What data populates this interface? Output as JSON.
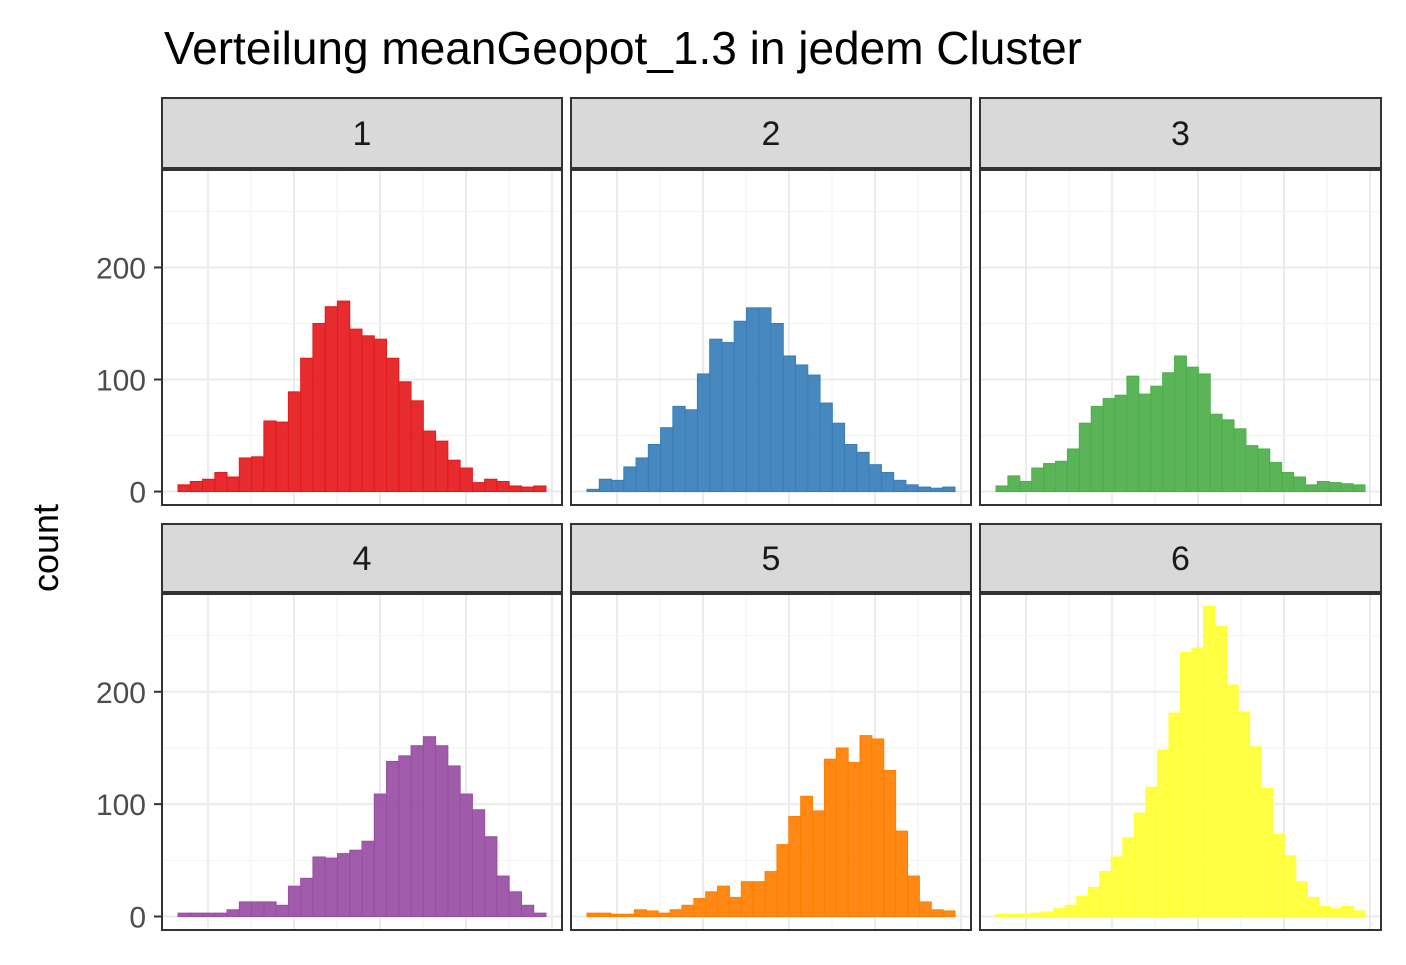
{
  "chart_data": {
    "type": "bar",
    "title": "Verteilung meanGeopot_1.3 in jedem Cluster",
    "xlabel": "",
    "ylabel": "count",
    "ylim": [
      -12,
      287
    ],
    "y_ticks": [
      0,
      100,
      200
    ],
    "grid": true,
    "legend": "none",
    "panels": [
      {
        "name": "1",
        "color": "#E41A1C",
        "values": [
          6,
          9,
          11,
          17,
          13,
          30,
          31,
          63,
          62,
          89,
          119,
          150,
          165,
          170,
          145,
          139,
          136,
          119,
          98,
          81,
          54,
          45,
          28,
          21,
          8,
          11,
          9,
          5,
          4,
          5
        ]
      },
      {
        "name": "2",
        "color": "#377EB8",
        "values": [
          2,
          11,
          10,
          22,
          30,
          42,
          57,
          76,
          73,
          105,
          136,
          133,
          152,
          164,
          164,
          150,
          121,
          113,
          104,
          79,
          61,
          42,
          35,
          24,
          17,
          10,
          6,
          4,
          3,
          4
        ]
      },
      {
        "name": "3",
        "color": "#4DAF4A",
        "values": [
          5,
          14,
          9,
          21,
          25,
          27,
          38,
          61,
          76,
          83,
          86,
          103,
          87,
          94,
          106,
          121,
          111,
          105,
          69,
          64,
          56,
          41,
          38,
          26,
          17,
          13,
          6,
          9,
          8,
          7,
          6
        ]
      },
      {
        "name": "4",
        "color": "#984EA3",
        "values": [
          3,
          3,
          3,
          3,
          6,
          13,
          13,
          13,
          10,
          27,
          34,
          53,
          52,
          56,
          59,
          67,
          109,
          138,
          143,
          152,
          160,
          152,
          134,
          109,
          95,
          71,
          36,
          22,
          10,
          3
        ]
      },
      {
        "name": "5",
        "color": "#FF7F00",
        "values": [
          3,
          3,
          2,
          2,
          6,
          5,
          3,
          6,
          10,
          16,
          22,
          27,
          17,
          31,
          31,
          40,
          64,
          89,
          107,
          94,
          140,
          150,
          137,
          161,
          158,
          130,
          76,
          36,
          13,
          6,
          5
        ]
      },
      {
        "name": "6",
        "color": "#FFFF33",
        "values": [
          2,
          2,
          2,
          3,
          4,
          7,
          10,
          18,
          26,
          40,
          53,
          70,
          92,
          115,
          148,
          181,
          235,
          239,
          276,
          258,
          206,
          182,
          151,
          114,
          73,
          54,
          31,
          17,
          9,
          7,
          9,
          5
        ]
      }
    ]
  }
}
